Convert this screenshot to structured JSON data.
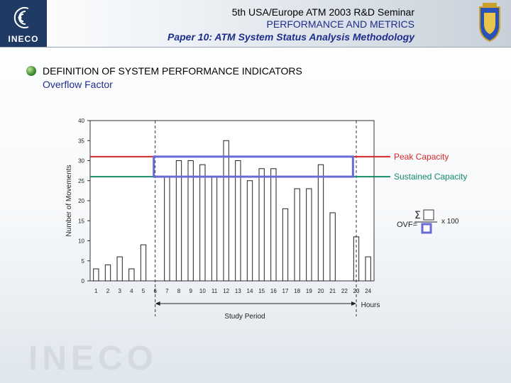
{
  "header": {
    "line1": "5th USA/Europe ATM 2003 R&D Seminar",
    "line2": "PERFORMANCE AND METRICS",
    "line3": "Paper 10: ATM System Status Analysis Methodology",
    "logo_text": "INECO"
  },
  "content": {
    "heading": "DEFINITION OF SYSTEM PERFORMANCE INDICATORS",
    "subheading": "Overflow Factor"
  },
  "watermark": "INECO",
  "colors": {
    "peak": "#d62828",
    "sustained": "#168a6a",
    "box": "#6a6ad6",
    "header_blue": "#1d2d8c"
  },
  "chart_data": {
    "type": "bar",
    "categories": [
      "1",
      "2",
      "3",
      "4",
      "5",
      "6",
      "7",
      "8",
      "9",
      "10",
      "11",
      "12",
      "13",
      "14",
      "15",
      "16",
      "17",
      "18",
      "19",
      "20",
      "21",
      "22",
      "23",
      "24"
    ],
    "values": [
      3,
      4,
      6,
      3,
      9,
      0,
      26,
      30,
      30,
      29,
      26,
      35,
      30,
      25,
      28,
      28,
      18,
      23,
      23,
      29,
      17,
      0,
      11,
      6
    ],
    "title": "",
    "xlabel": "Hours",
    "ylabel": "Number of Movements",
    "ylim": [
      0,
      40
    ],
    "yticks": [
      0,
      5,
      10,
      15,
      20,
      25,
      30,
      35,
      40
    ],
    "reference_lines": [
      {
        "name": "Peak Capacity",
        "value": 31
      },
      {
        "name": "Sustained Capacity",
        "value": 26
      }
    ],
    "study_period_label": "Study Period",
    "study_period": [
      5.5,
      22.5
    ],
    "highlight_box": {
      "x_start": 6,
      "x_end": 22,
      "y_low": 26,
      "y_high": 31
    },
    "formula": {
      "prefix": "OVF=",
      "sigma": "Σ",
      "suffix": "x 100"
    }
  }
}
